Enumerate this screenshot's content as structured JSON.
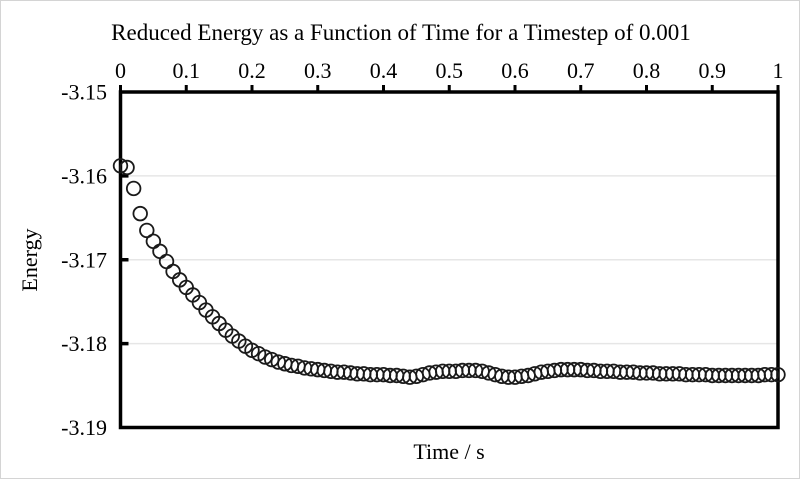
{
  "frame": {
    "background": "#ffffff",
    "border_color": "#d4d4d4"
  },
  "chart_data": {
    "type": "scatter",
    "title": "Reduced Energy as a Function of Time for a Timestep of 0.001",
    "xlabel": "Time / s",
    "ylabel": "Energy",
    "x_axis_position": "top",
    "xlim": [
      0,
      1
    ],
    "ylim": [
      -3.19,
      -3.15
    ],
    "x_ticks": [
      0,
      0.1,
      0.2,
      0.3,
      0.4,
      0.5,
      0.6,
      0.7,
      0.8,
      0.9,
      1
    ],
    "x_tick_labels": [
      "0",
      "0.1",
      "0.2",
      "0.3",
      "0.4",
      "0.5",
      "0.6",
      "0.7",
      "0.8",
      "0.9",
      "1"
    ],
    "y_ticks": [
      -3.15,
      -3.16,
      -3.17,
      -3.18,
      -3.19
    ],
    "y_tick_labels": [
      "-3.15",
      "-3.16",
      "-3.17",
      "-3.18",
      "-3.19"
    ],
    "grid": "horizontal",
    "legend": "none",
    "marker": {
      "shape": "open-circle",
      "radius_px": 6.8,
      "stroke_width_px": 1.8
    },
    "colors": {
      "axis": "#000000",
      "marker": "#1a1a1a",
      "gridline": "#e6e6e6",
      "text": "#000000"
    },
    "series": [
      {
        "name": "Energy",
        "x": [
          0,
          0.01,
          0.02,
          0.03,
          0.04,
          0.05,
          0.06,
          0.07,
          0.08,
          0.09,
          0.1,
          0.11,
          0.12,
          0.13,
          0.14,
          0.15,
          0.16,
          0.17,
          0.18,
          0.19,
          0.2,
          0.21,
          0.22,
          0.23,
          0.24,
          0.25,
          0.26,
          0.27,
          0.28,
          0.29,
          0.3,
          0.31,
          0.32,
          0.33,
          0.34,
          0.35,
          0.36,
          0.37,
          0.38,
          0.39,
          0.4,
          0.41,
          0.42,
          0.43,
          0.44,
          0.45,
          0.46,
          0.47,
          0.48,
          0.49,
          0.5,
          0.51,
          0.52,
          0.53,
          0.54,
          0.55,
          0.56,
          0.57,
          0.58,
          0.59,
          0.6,
          0.61,
          0.62,
          0.63,
          0.64,
          0.65,
          0.66,
          0.67,
          0.68,
          0.69,
          0.7,
          0.71,
          0.72,
          0.73,
          0.74,
          0.75,
          0.76,
          0.77,
          0.78,
          0.79,
          0.8,
          0.81,
          0.82,
          0.83,
          0.84,
          0.85,
          0.86,
          0.87,
          0.88,
          0.89,
          0.9,
          0.91,
          0.92,
          0.93,
          0.94,
          0.95,
          0.96,
          0.97,
          0.98,
          0.99,
          1
        ],
        "y": [
          -3.1588,
          -3.159,
          -3.1615,
          -3.1645,
          -3.1665,
          -3.1678,
          -3.169,
          -3.1702,
          -3.1714,
          -3.1724,
          -3.1733,
          -3.1742,
          -3.1751,
          -3.176,
          -3.1768,
          -3.1776,
          -3.1784,
          -3.1791,
          -3.1797,
          -3.1803,
          -3.1808,
          -3.1812,
          -3.1816,
          -3.1819,
          -3.1822,
          -3.1824,
          -3.1826,
          -3.1827,
          -3.1829,
          -3.183,
          -3.1831,
          -3.1832,
          -3.1833,
          -3.1834,
          -3.1834,
          -3.1835,
          -3.1836,
          -3.1836,
          -3.1837,
          -3.1837,
          -3.1837,
          -3.1838,
          -3.1838,
          -3.1839,
          -3.184,
          -3.1839,
          -3.1837,
          -3.1835,
          -3.1834,
          -3.1833,
          -3.1833,
          -3.1833,
          -3.1832,
          -3.1832,
          -3.1832,
          -3.1833,
          -3.1835,
          -3.1837,
          -3.1839,
          -3.184,
          -3.184,
          -3.1839,
          -3.1838,
          -3.1836,
          -3.1834,
          -3.1833,
          -3.1832,
          -3.1831,
          -3.1831,
          -3.1831,
          -3.1831,
          -3.1832,
          -3.1832,
          -3.1833,
          -3.1833,
          -3.1833,
          -3.1834,
          -3.1834,
          -3.1834,
          -3.1835,
          -3.1835,
          -3.1835,
          -3.1836,
          -3.1836,
          -3.1836,
          -3.1836,
          -3.1837,
          -3.1837,
          -3.1837,
          -3.1837,
          -3.1838,
          -3.1838,
          -3.1838,
          -3.1838,
          -3.1838,
          -3.1838,
          -3.1838,
          -3.1838,
          -3.1837,
          -3.1837,
          -3.1837
        ]
      }
    ]
  }
}
